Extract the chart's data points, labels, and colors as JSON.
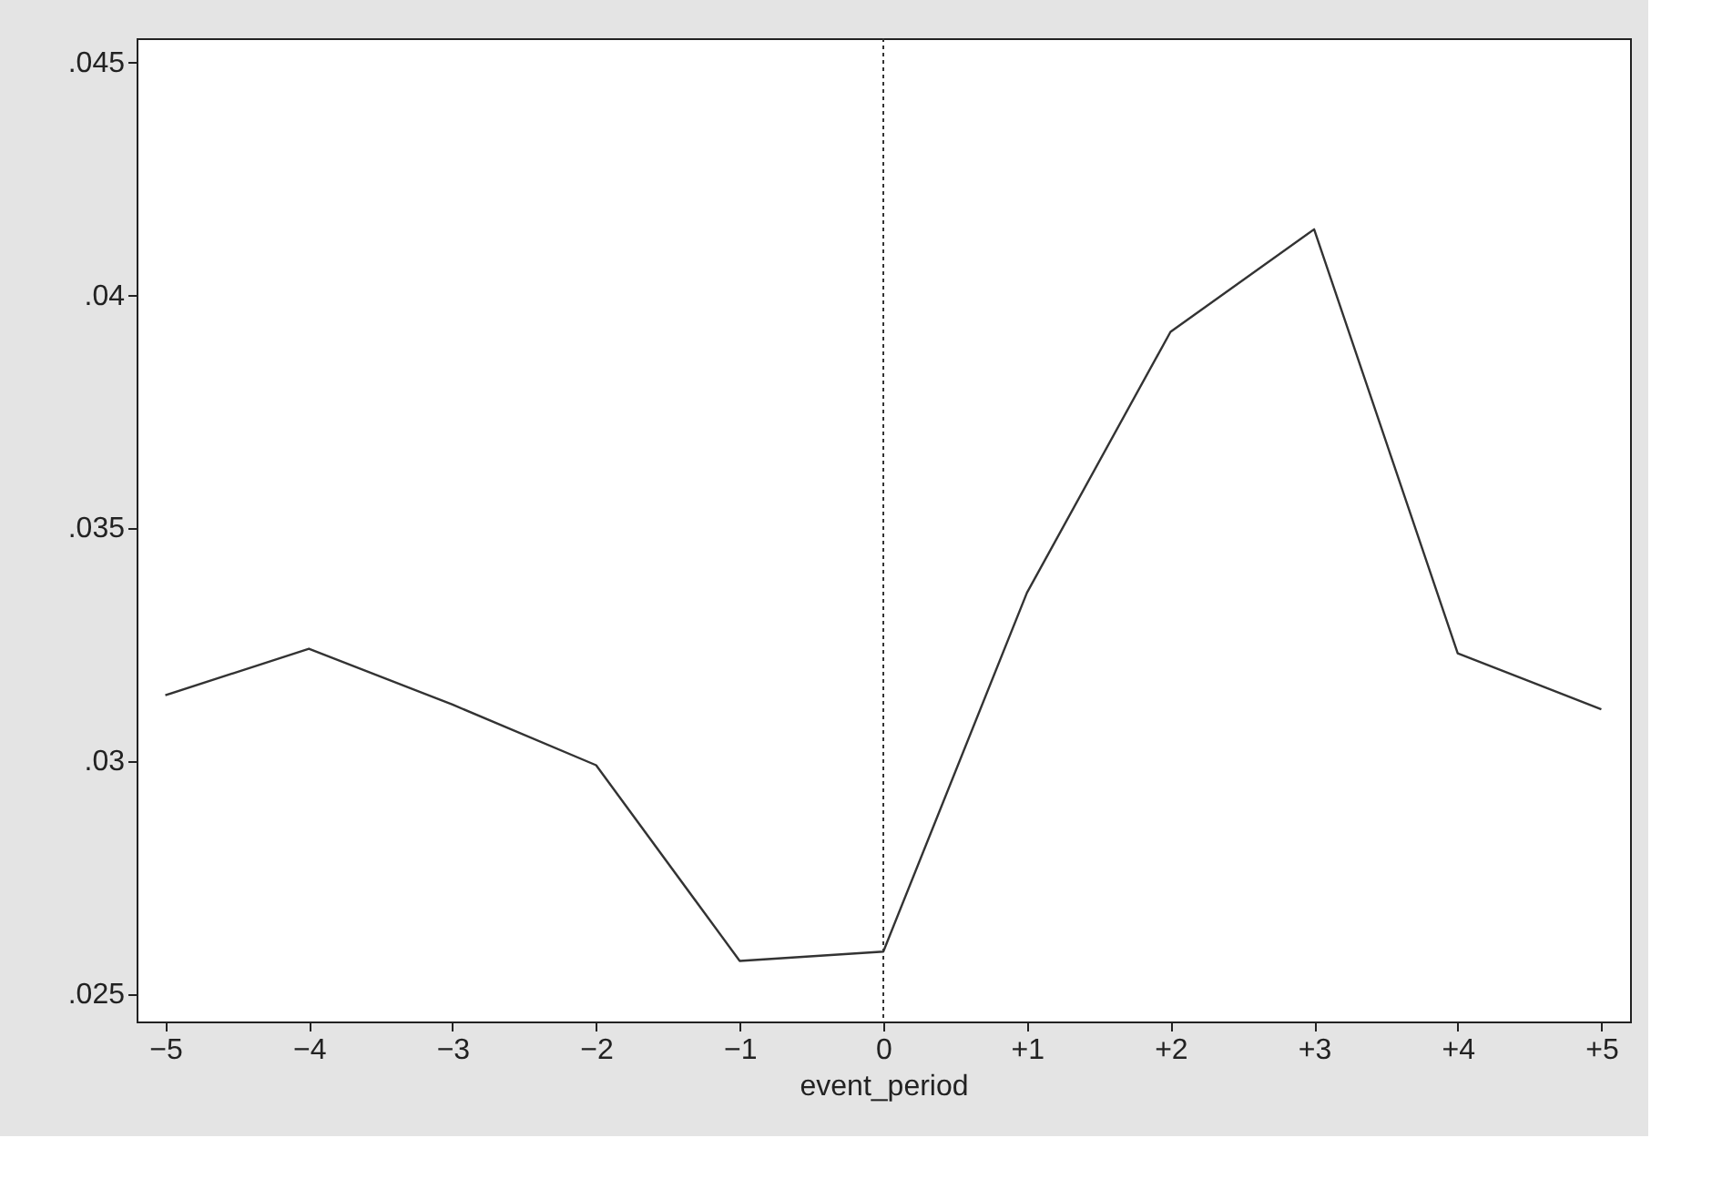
{
  "chart_data": {
    "type": "line",
    "xlabel": "event_period",
    "x": [
      -5,
      -4,
      -3,
      -2,
      -1,
      0,
      1,
      2,
      3,
      4,
      5
    ],
    "series": [
      {
        "color": "#333333",
        "values": [
          0.0314,
          0.0324,
          0.0312,
          0.0299,
          0.0257,
          0.0259,
          0.0336,
          0.0392,
          0.0414,
          0.0323,
          0.0311
        ]
      }
    ],
    "xlim": [
      -5.2,
      5.2
    ],
    "xticks": [
      {
        "value": -5,
        "label": "−5"
      },
      {
        "value": -4,
        "label": "−4"
      },
      {
        "value": -3,
        "label": "−3"
      },
      {
        "value": -2,
        "label": "−2"
      },
      {
        "value": -1,
        "label": "−1"
      },
      0,
      {
        "value": 1,
        "label": "+1"
      },
      {
        "value": 2,
        "label": "+2"
      },
      {
        "value": 3,
        "label": "+3"
      },
      {
        "value": 4,
        "label": "+4"
      },
      {
        "value": 5,
        "label": "+5"
      }
    ],
    "ylim": [
      0.0244,
      0.0455
    ],
    "yticks": [
      {
        "value": 0.025,
        "label": ".025"
      },
      {
        "value": 0.03,
        "label": ".03"
      },
      {
        "value": 0.035,
        "label": ".035"
      },
      {
        "value": 0.04,
        "label": ".04"
      },
      {
        "value": 0.045,
        "label": ".045"
      }
    ],
    "ref_lines": [
      {
        "axis": "x",
        "value": 0,
        "color": "#333333",
        "line_style": "dotted"
      }
    ],
    "grid": false,
    "marker": "none",
    "line_style": "solid"
  }
}
